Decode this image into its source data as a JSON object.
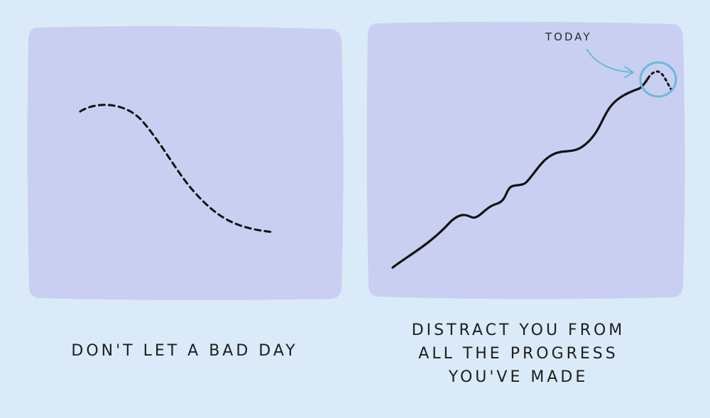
{
  "panels": {
    "left": {
      "caption": "DON'T LET A BAD DAY"
    },
    "right": {
      "annotation": "TODAY",
      "caption_lines": [
        "DISTRACT YOU FROM",
        "ALL THE PROGRESS",
        "YOU'VE MADE"
      ]
    }
  },
  "colors": {
    "background": "#daeaf8",
    "panel_fill": "#c9cff0",
    "line": "#111111",
    "highlight": "#6ab8dc"
  }
}
